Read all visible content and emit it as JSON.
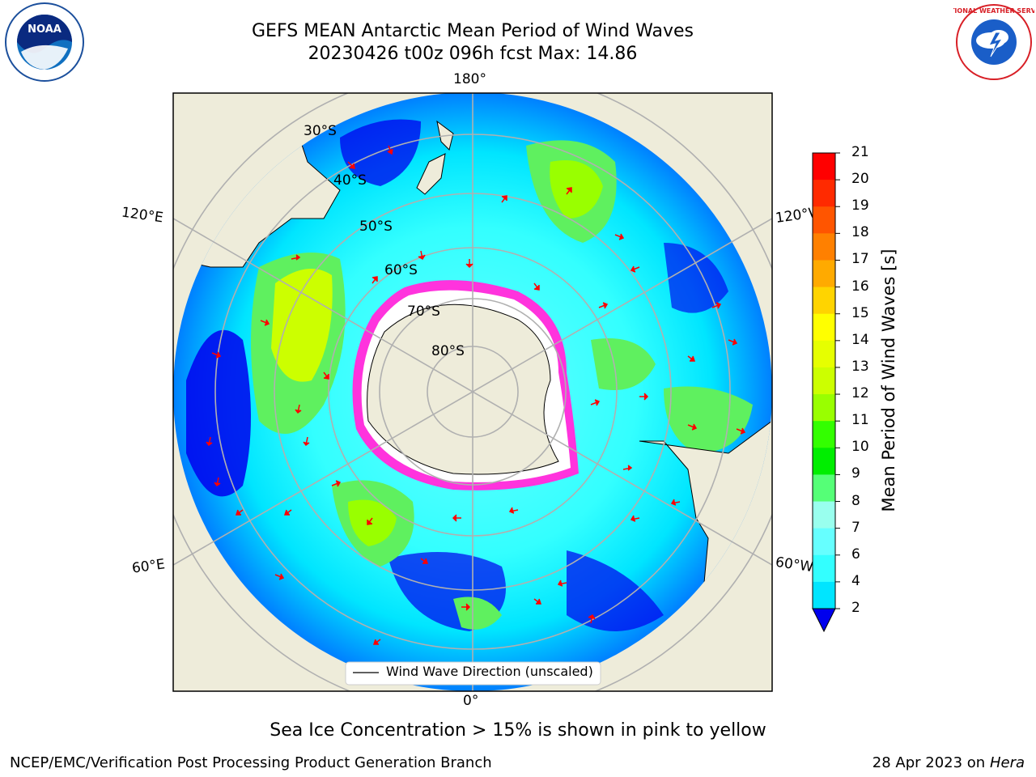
{
  "title": {
    "line1": "GEFS MEAN Antarctic Mean Period of Wind Waves",
    "line2": "20230426 t00z 096h fcst   Max: 14.86"
  },
  "logos": {
    "noaa": "NOAA",
    "nws": "NATIONAL WEATHER SERVICE"
  },
  "map": {
    "longitude_labels": {
      "top": "180°",
      "bottom": "0°",
      "upper_left": "120°E",
      "upper_right": "120°W",
      "lower_left": "60°E",
      "lower_right": "60°W"
    },
    "latitude_labels": [
      "30°S",
      "40°S",
      "50°S",
      "60°S",
      "70°S",
      "80°S"
    ],
    "legend_label": "Wind Wave Direction (unscaled)",
    "colors": {
      "land": "#eeecda",
      "ocean_low": "#00e5ff",
      "ocean_high": "#5ff05f",
      "sea_ice": "#ff33dd",
      "arrows": "#ff0000"
    }
  },
  "colorbar": {
    "title": "Mean Period of Wind Waves [s]",
    "ticks": [
      "21",
      "20",
      "19",
      "18",
      "17",
      "16",
      "15",
      "14",
      "13",
      "12",
      "11",
      "10",
      "9",
      "8",
      "7",
      "6",
      "4",
      "2"
    ],
    "bands": [
      "#ff0000",
      "#ff2a00",
      "#ff5500",
      "#ff8000",
      "#ffaa00",
      "#ffd400",
      "#ffff00",
      "#e6ff00",
      "#ccff00",
      "#99ff00",
      "#33ff00",
      "#00ee00",
      "#55ff77",
      "#99ffee",
      "#66ffff",
      "#33ffff",
      "#00e5ff",
      "#0080ff",
      "#0000ee"
    ]
  },
  "note": "Sea Ice Concentration > 15% is shown in pink to yellow",
  "footer": {
    "left": "NCEP/EMC/Verification Post Processing Product Generation Branch",
    "right_date": "28 Apr 2023 on",
    "right_machine": "Hera"
  }
}
